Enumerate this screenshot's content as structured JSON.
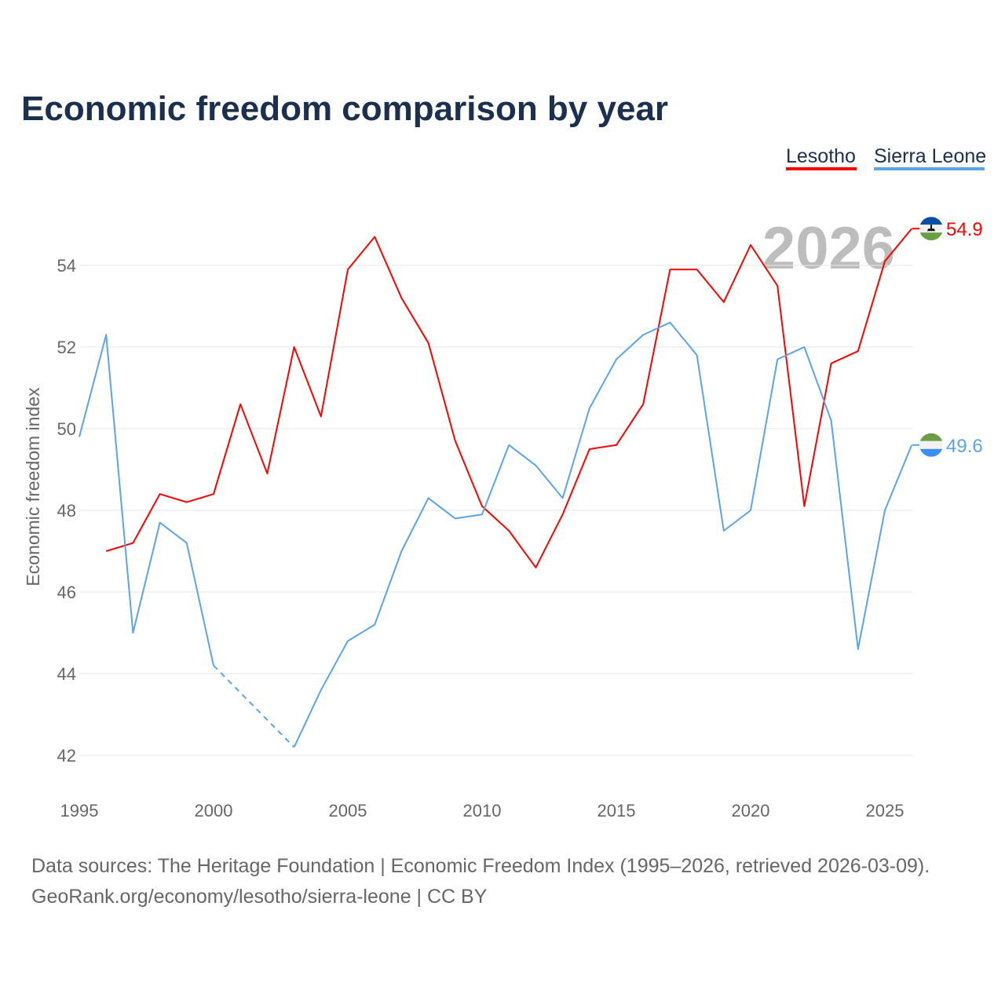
{
  "chart_data": {
    "type": "line",
    "title": "Economic freedom comparison by year",
    "ylabel": "Economic freedom index",
    "xlabel": "",
    "ylim": [
      41,
      56
    ],
    "xlim": [
      1995,
      2026
    ],
    "yticks": [
      "42",
      "44",
      "46",
      "48",
      "50",
      "52",
      "54"
    ],
    "xticks": [
      "1995",
      "2000",
      "2005",
      "2010",
      "2015",
      "2020",
      "2025"
    ],
    "watermark_year": "2026",
    "legend_position": "top-right",
    "x": [
      1995,
      1996,
      1997,
      1998,
      1999,
      2000,
      2001,
      2002,
      2003,
      2004,
      2005,
      2006,
      2007,
      2008,
      2009,
      2010,
      2011,
      2012,
      2013,
      2014,
      2015,
      2016,
      2017,
      2018,
      2019,
      2020,
      2021,
      2022,
      2023,
      2024,
      2025,
      2026
    ],
    "series": [
      {
        "name": "Lesotho",
        "color": "#ff0000",
        "end_label": "54.9",
        "flag": "lesotho-flag",
        "values": [
          null,
          47.0,
          47.2,
          48.4,
          48.2,
          48.4,
          50.6,
          48.9,
          52.0,
          50.3,
          53.9,
          54.7,
          53.2,
          52.1,
          49.7,
          48.1,
          47.5,
          46.6,
          47.9,
          49.5,
          49.6,
          50.6,
          53.9,
          53.9,
          53.1,
          54.5,
          53.5,
          48.1,
          51.6,
          51.9,
          54.1,
          54.9
        ]
      },
      {
        "name": "Sierra Leone",
        "color": "#5ba4e8",
        "end_label": "49.6",
        "flag": "sierra-leone-flag",
        "values": [
          49.8,
          52.3,
          45.0,
          47.7,
          47.2,
          44.2,
          null,
          null,
          42.2,
          43.6,
          44.8,
          45.2,
          47.0,
          48.3,
          47.8,
          47.9,
          49.6,
          49.1,
          48.3,
          50.5,
          51.7,
          52.3,
          52.6,
          51.8,
          47.5,
          48.0,
          51.7,
          52.0,
          50.2,
          44.6,
          48.0,
          49.6
        ]
      }
    ]
  },
  "footer": {
    "source": "Data sources: The Heritage Foundation | Economic Freedom Index (1995–2026, retrieved 2026-03-09).",
    "credit": "GeoRank.org/economy/lesotho/sierra-leone | CC BY"
  }
}
